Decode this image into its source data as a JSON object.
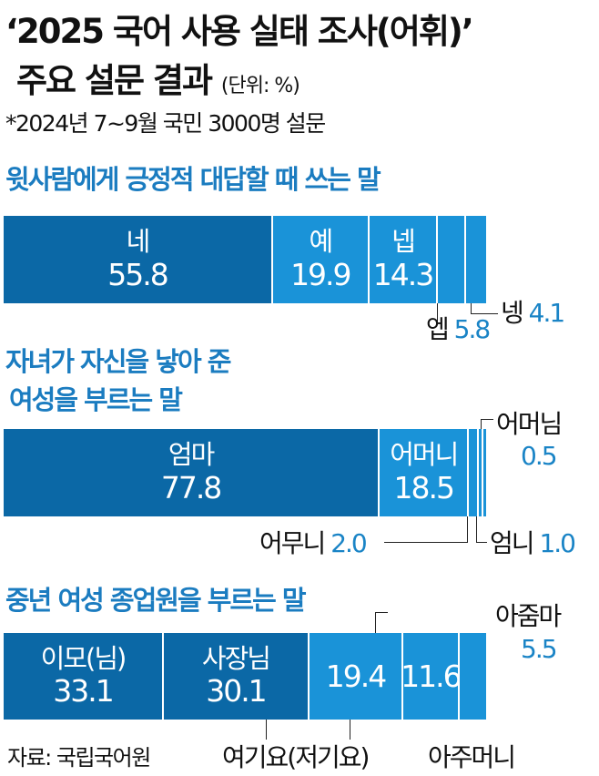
{
  "title_line1": "‘2025 국어 사용 실태 조사(어휘)’",
  "title_line2": "주요 설문 결과",
  "unit": "(단위: %)",
  "subtitle": "*2024년 7~9월 국민 3000명 설문",
  "source": "자료: 국립국어원",
  "colors": {
    "dark": "#0b68a6",
    "light": "#1a93d8",
    "accent": "#1b7cc0"
  },
  "chart_data": [
    {
      "type": "bar",
      "stacked": true,
      "title": "윗사람에게 긍정적 대답할 때 쓰는 말",
      "unit": "%",
      "categories": [
        "네",
        "예",
        "넵",
        "엡",
        "넹"
      ],
      "values": [
        55.8,
        19.9,
        14.3,
        5.8,
        4.1
      ],
      "labels": [
        "55.8",
        "19.9",
        "14.3",
        "5.8",
        "4.1"
      ],
      "shade": [
        "dark",
        "light",
        "light",
        "light",
        "light"
      ],
      "inside": [
        true,
        true,
        true,
        false,
        false
      ]
    },
    {
      "type": "bar",
      "stacked": true,
      "title_line1": "자녀가 자신을 낳아 준",
      "title_line2": "여성을 부르는 말",
      "unit": "%",
      "categories": [
        "엄마",
        "어머니",
        "어무니",
        "엄니",
        "어머님"
      ],
      "values": [
        77.8,
        18.5,
        2.0,
        1.0,
        0.5
      ],
      "labels": [
        "77.8",
        "18.5",
        "2.0",
        "1.0",
        "0.5"
      ],
      "shade": [
        "dark",
        "light",
        "light",
        "light",
        "light"
      ],
      "inside": [
        true,
        true,
        false,
        false,
        false
      ]
    },
    {
      "type": "bar",
      "stacked": true,
      "title": "중년 여성 종업원을 부르는 말",
      "unit": "%",
      "categories": [
        "이모(님)",
        "사장님",
        "여기요(저기요)",
        "아주머니",
        "아줌마"
      ],
      "values": [
        33.1,
        30.1,
        19.4,
        11.6,
        5.5
      ],
      "labels": [
        "33.1",
        "30.1",
        "19.4",
        "11.6",
        "5.5"
      ],
      "shade": [
        "dark",
        "dark",
        "light",
        "light",
        "light"
      ],
      "inside": [
        true,
        true,
        "value",
        "value",
        false
      ]
    }
  ]
}
